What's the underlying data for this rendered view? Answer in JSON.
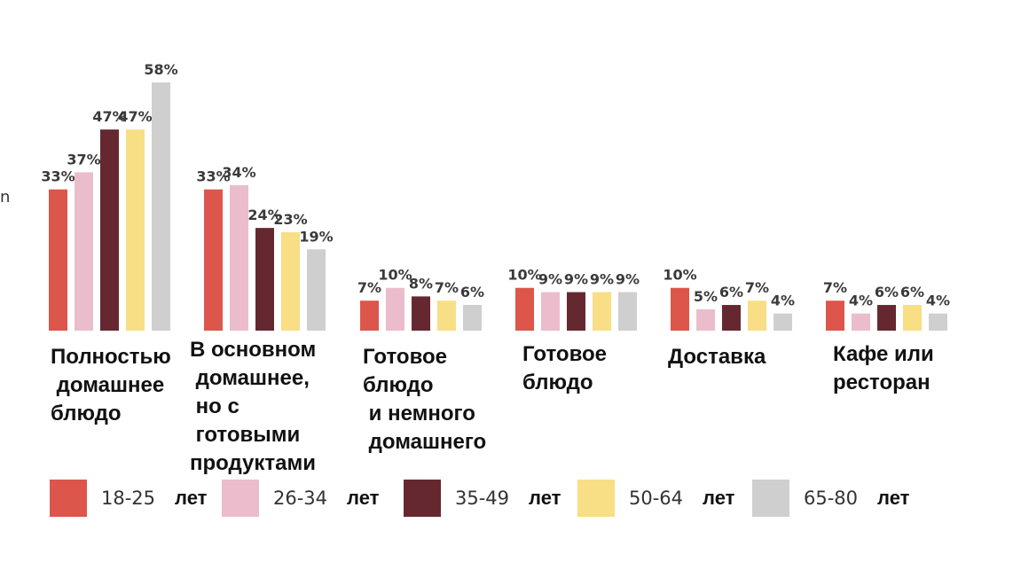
{
  "chart_data": {
    "type": "bar",
    "title": "",
    "xlabel": "",
    "ylabel": "",
    "ylim": [
      0,
      58
    ],
    "grid": false,
    "legend_position": "bottom",
    "categories": [
      "Полностью\n домашнее\nблюдо",
      "В основном\n домашнее,\n но с\n готовыми\nпродуктами",
      "Готовое\nблюдо\n и немного\n домашнего",
      "Готовое\nблюдо",
      "Доставка",
      "Кафе или\nресторан"
    ],
    "series": [
      {
        "name": "18-25",
        "color": "#dc564b",
        "values": [
          33,
          33,
          7,
          10,
          10,
          7
        ],
        "labels": [
          "33%",
          "33%",
          "7%",
          "10%",
          "10%",
          "7%"
        ]
      },
      {
        "name": "26-34",
        "color": "#ebbdcc",
        "values": [
          37,
          34,
          10,
          9,
          5,
          4
        ],
        "labels": [
          "37%",
          "34%",
          "10%",
          "9%",
          "5%",
          "4%"
        ]
      },
      {
        "name": "35-49",
        "color": "#662830",
        "values": [
          47,
          24,
          8,
          9,
          6,
          6
        ],
        "labels": [
          "47%",
          "24%",
          "8%",
          "9%",
          "6%",
          "6%"
        ]
      },
      {
        "name": "50-64",
        "color": "#f8de85",
        "values": [
          47,
          23,
          7,
          9,
          7,
          6
        ],
        "labels": [
          "47%",
          "23%",
          "7%",
          "9%",
          "7%",
          "6%"
        ]
      },
      {
        "name": "65-80",
        "color": "#cfcfcf",
        "values": [
          58,
          19,
          6,
          9,
          4,
          4
        ],
        "labels": [
          "58%",
          "19%",
          "6%",
          "9%",
          "4%",
          "4%"
        ]
      }
    ]
  },
  "legend": {
    "unit": "лет",
    "ranges": [
      "18-25",
      "26-34",
      "35-49",
      "50-64",
      "65-80"
    ]
  },
  "stray_text": "n"
}
